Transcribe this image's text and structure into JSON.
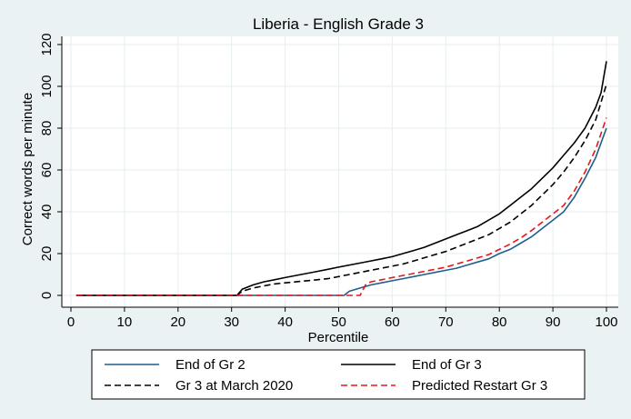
{
  "chart_data": {
    "type": "line",
    "title": "Liberia - English Grade 3",
    "xlabel": "Percentile",
    "ylabel": "Correct words per minute",
    "xlim": [
      0,
      100
    ],
    "ylim": [
      0,
      120
    ],
    "xticks": [
      0,
      10,
      20,
      30,
      40,
      50,
      60,
      70,
      80,
      90,
      100
    ],
    "yticks": [
      0,
      20,
      40,
      60,
      80,
      100,
      120
    ],
    "grid": true,
    "legend_position": "bottom",
    "series": [
      {
        "name": "End of Gr 2",
        "color": "#1f5f8b",
        "dash": "solid",
        "x": [
          1,
          51,
          52,
          54,
          56,
          58,
          60,
          62,
          64,
          66,
          68,
          70,
          72,
          74,
          76,
          78,
          80,
          82,
          84,
          86,
          88,
          90,
          92,
          94,
          96,
          98,
          100
        ],
        "y": [
          0,
          0,
          2,
          3.5,
          5,
          6,
          7,
          8,
          9,
          10,
          11,
          12,
          13,
          14.5,
          16,
          17.5,
          20,
          22,
          25,
          28,
          32,
          36,
          40,
          47,
          56,
          66,
          80
        ]
      },
      {
        "name": "End of Gr 3",
        "color": "#000000",
        "dash": "solid",
        "x": [
          1,
          31,
          32,
          34,
          36,
          38,
          40,
          42,
          44,
          46,
          48,
          50,
          52,
          54,
          56,
          58,
          60,
          62,
          64,
          66,
          68,
          70,
          72,
          74,
          76,
          78,
          80,
          82,
          84,
          86,
          88,
          90,
          92,
          94,
          96,
          98,
          99,
          100
        ],
        "y": [
          0,
          0,
          3,
          5,
          6.5,
          7.5,
          8.5,
          9.5,
          10.5,
          11.5,
          12.5,
          13.5,
          14.5,
          15.5,
          16.5,
          17.5,
          18.5,
          20,
          21.5,
          23,
          25,
          27,
          29,
          31,
          33,
          36,
          39,
          43,
          47,
          51,
          56,
          61,
          67,
          73,
          80,
          90,
          97,
          112
        ]
      },
      {
        "name": "Gr 3 at March 2020",
        "color": "#000000",
        "dash": "dashed",
        "x": [
          1,
          31,
          32,
          34,
          36,
          38,
          40,
          42,
          44,
          46,
          48,
          50,
          52,
          54,
          56,
          58,
          60,
          62,
          64,
          66,
          68,
          70,
          72,
          74,
          76,
          78,
          80,
          82,
          84,
          86,
          88,
          90,
          92,
          94,
          96,
          98,
          100
        ],
        "y": [
          0,
          0,
          2,
          3.5,
          4.5,
          5.5,
          6,
          6.5,
          7,
          7.5,
          8,
          9,
          10,
          11,
          12,
          13,
          14,
          15,
          16.5,
          18,
          19.5,
          21,
          23,
          25,
          27,
          29,
          32,
          35,
          39,
          43,
          48,
          53,
          59,
          66,
          74,
          84,
          101
        ]
      },
      {
        "name": "Predicted Restart Gr 3",
        "color": "#e8161b",
        "dash": "dashed",
        "x": [
          1,
          54,
          55,
          56,
          58,
          60,
          62,
          64,
          66,
          68,
          70,
          72,
          74,
          76,
          78,
          80,
          82,
          84,
          86,
          88,
          90,
          92,
          94,
          96,
          98,
          100
        ],
        "y": [
          0,
          0,
          5,
          6.5,
          7.5,
          8.5,
          9.5,
          10.5,
          11.5,
          12.5,
          13.5,
          15,
          16.5,
          18,
          19.5,
          22,
          24.5,
          27.5,
          31,
          35,
          39,
          43,
          50,
          59,
          70,
          85
        ]
      }
    ]
  }
}
